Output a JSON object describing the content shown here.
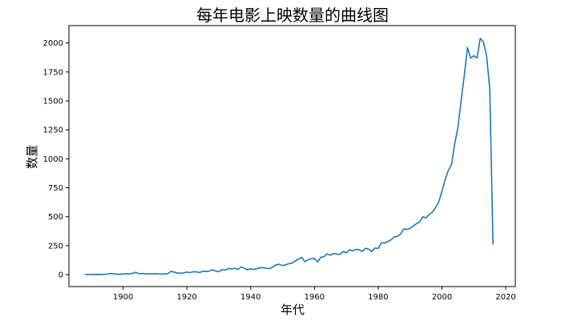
{
  "chart_data": {
    "type": "line",
    "title": "每年电影上映数量的曲线图",
    "xlabel": "年代",
    "ylabel": "数量",
    "xlim": [
      1883,
      2023
    ],
    "ylim": [
      -103,
      2150
    ],
    "xticks": [
      1900,
      1920,
      1940,
      1960,
      1980,
      2000,
      2020
    ],
    "yticks": [
      0,
      250,
      500,
      750,
      1000,
      1250,
      1500,
      1750,
      2000
    ],
    "grid": false,
    "legend": "none",
    "color": "#1f77b4",
    "series": [
      {
        "x": [
          1888,
          1889,
          1890,
          1891,
          1892,
          1893,
          1894,
          1895,
          1896,
          1897,
          1898,
          1899,
          1900,
          1901,
          1902,
          1903,
          1904,
          1905,
          1906,
          1907,
          1908,
          1909,
          1910,
          1911,
          1912,
          1913,
          1914,
          1915,
          1916,
          1917,
          1918,
          1919,
          1920,
          1921,
          1922,
          1923,
          1924,
          1925,
          1926,
          1927,
          1928,
          1929,
          1930,
          1931,
          1932,
          1933,
          1934,
          1935,
          1936,
          1937,
          1938,
          1939,
          1940,
          1941,
          1942,
          1943,
          1944,
          1945,
          1946,
          1947,
          1948,
          1949,
          1950,
          1951,
          1952,
          1953,
          1954,
          1955,
          1956,
          1957,
          1958,
          1959,
          1960,
          1961,
          1962,
          1963,
          1964,
          1965,
          1966,
          1967,
          1968,
          1969,
          1970,
          1971,
          1972,
          1973,
          1974,
          1975,
          1976,
          1977,
          1978,
          1979,
          1980,
          1981,
          1982,
          1983,
          1984,
          1985,
          1986,
          1987,
          1988,
          1989,
          1990,
          1991,
          1992,
          1993,
          1994,
          1995,
          1996,
          1997,
          1998,
          1999,
          2000,
          2001,
          2002,
          2003,
          2004,
          2005,
          2006,
          2007,
          2008,
          2009,
          2010,
          2011,
          2012,
          2013,
          2014,
          2015,
          2016
        ],
        "y": [
          2,
          1,
          1,
          1,
          2,
          1,
          3,
          5,
          10,
          8,
          4,
          3,
          6,
          8,
          6,
          12,
          20,
          8,
          10,
          8,
          6,
          7,
          8,
          6,
          5,
          6,
          8,
          28,
          22,
          14,
          12,
          14,
          22,
          18,
          25,
          24,
          18,
          30,
          28,
          30,
          42,
          32,
          25,
          44,
          38,
          54,
          48,
          56,
          45,
          66,
          55,
          42,
          52,
          44,
          52,
          60,
          60,
          55,
          52,
          68,
          85,
          90,
          78,
          85,
          95,
          100,
          118,
          135,
          150,
          112,
          128,
          138,
          140,
          110,
          150,
          155,
          180,
          168,
          182,
          178,
          175,
          200,
          188,
          215,
          205,
          218,
          215,
          200,
          228,
          220,
          200,
          230,
          226,
          275,
          272,
          285,
          300,
          325,
          330,
          350,
          395,
          390,
          400,
          420,
          440,
          455,
          500,
          490,
          520,
          540,
          580,
          630,
          720,
          820,
          900,
          950,
          1130,
          1270,
          1500,
          1720,
          1960,
          1870,
          1890,
          1870,
          2040,
          2010,
          1890,
          1600,
          260
        ]
      }
    ]
  }
}
